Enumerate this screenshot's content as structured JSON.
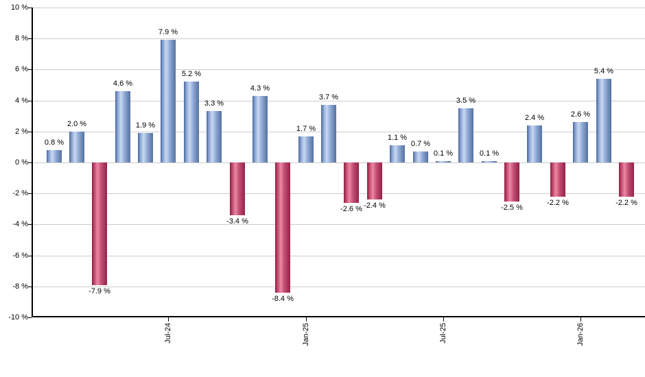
{
  "chart_data": {
    "type": "bar",
    "title": "",
    "xlabel": "",
    "ylabel": "",
    "values": [
      0.8,
      2.0,
      -7.9,
      4.6,
      1.9,
      7.9,
      5.2,
      3.3,
      -3.4,
      4.3,
      -8.4,
      1.7,
      3.7,
      -2.6,
      -2.4,
      1.1,
      0.7,
      0.1,
      3.5,
      0.1,
      -2.5,
      2.4,
      -2.2,
      2.6,
      5.4,
      -2.2
    ],
    "bar_labels": [
      "0.8 %",
      "2.0 %",
      "-7.9 %",
      "4.6 %",
      "1.9 %",
      "7.9 %",
      "5.2 %",
      "3.3 %",
      "-3.4 %",
      "4.3 %",
      "-8.4 %",
      "1.7 %",
      "3.7 %",
      "-2.6 %",
      "-2.4 %",
      "1.1 %",
      "0.7 %",
      "0.1 %",
      "3.5 %",
      "0.1 %",
      "-2.5 %",
      "2.4 %",
      "-2.2 %",
      "2.6 %",
      "5.4 %",
      "-2.2 %"
    ],
    "x_ticks": [
      {
        "index": 5,
        "label": "Jul-24"
      },
      {
        "index": 11,
        "label": "Jan-25"
      },
      {
        "index": 17,
        "label": "Jul-25"
      },
      {
        "index": 23,
        "label": "Jan-26"
      }
    ],
    "y_tick_labels": [
      "10 %",
      "8 %",
      "6 %",
      "4 %",
      "2 %",
      "0 %",
      "-2 %",
      "-4 %",
      "-6 %",
      "-8 %",
      "-10 %"
    ],
    "ylim": [
      -10,
      10
    ],
    "y_step": 2,
    "grid": true,
    "legend": "none",
    "colors": {
      "positive_stops": [
        "#47659f",
        "#8aa5d2",
        "#c9d8f1",
        "#8fa9d6",
        "#54719e"
      ],
      "negative_stops": [
        "#8c1b3f",
        "#c04a6e",
        "#ec88a3",
        "#c14e72",
        "#93224a"
      ],
      "gridline": "#cccccc",
      "axis": "#000000",
      "text": "#000000",
      "background": "#ffffff"
    }
  }
}
